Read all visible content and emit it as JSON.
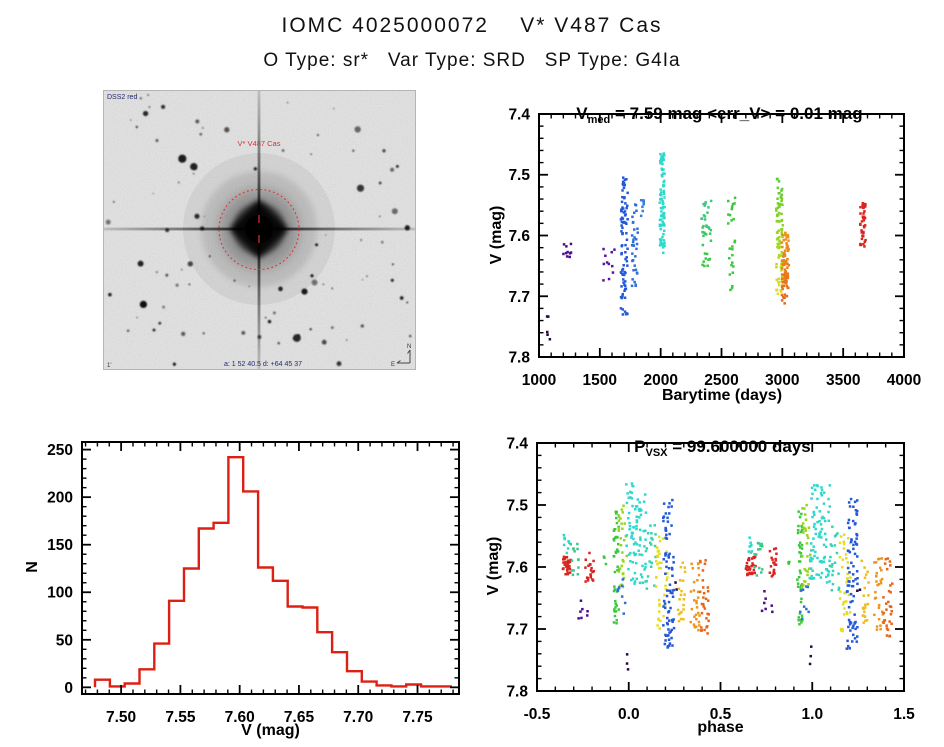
{
  "header": {
    "title": "IOMC 4025000072    V* V487 Cas",
    "subtitle": "O Type: sr*   Var Type: SRD   SP Type: G4Ia"
  },
  "finder": {
    "survey_label": "DSS2 red",
    "star_label": "V* V487 Cas",
    "coords_label": "a: 1 52 40.5   d: +64 45 37",
    "scale_label": "1'",
    "compass_n": "N",
    "compass_e": "E"
  },
  "chart_data": [
    {
      "name": "lightcurve",
      "type": "scatter",
      "title_parts": {
        "base": "V",
        "sub": "med",
        "rest": " = 7.59 mag <err_V> = 0.01 mag"
      },
      "xlabel": "Barytime (days)",
      "ylabel": "V (mag)",
      "xlim": [
        1000,
        4000
      ],
      "ylim": [
        7.8,
        7.4
      ],
      "xticks": [
        1000,
        1500,
        2000,
        2500,
        3000,
        3500,
        4000
      ],
      "xtick_labels": [
        "1000",
        "1500",
        "2000",
        "2500",
        "3000",
        "3500",
        "4000"
      ],
      "yticks": [
        7.4,
        7.5,
        7.6,
        7.7,
        7.8
      ],
      "ytick_labels": [
        "7.4",
        "7.5",
        "7.6",
        "7.7",
        "7.8"
      ],
      "xminor": 5,
      "yminor": 5,
      "clusters": [
        {
          "x": [
            1066,
            1092
          ],
          "y": [
            7.728,
            7.772
          ],
          "color": "#25093f",
          "n": 5
        },
        {
          "x": [
            1190,
            1285
          ],
          "y": [
            7.613,
            7.642
          ],
          "color": "#4a0d8c",
          "n": 10
        },
        {
          "x": [
            1520,
            1622
          ],
          "y": [
            7.617,
            7.678
          ],
          "color": "#5a12a2",
          "n": 11
        },
        {
          "x": [
            1672,
            1729
          ],
          "y": [
            7.496,
            7.733
          ],
          "color": "#2458d8",
          "n": 85
        },
        {
          "x": [
            1762,
            1812
          ],
          "y": [
            7.543,
            7.683
          ],
          "color": "#2e6fd8",
          "n": 34
        },
        {
          "x": [
            1836,
            1868
          ],
          "y": [
            7.538,
            7.568
          ],
          "color": "#3a7de0",
          "n": 9
        },
        {
          "x": [
            1992,
            2032
          ],
          "y": [
            7.465,
            7.63
          ],
          "color": "#2ed8cc",
          "n": 90
        },
        {
          "x": [
            2335,
            2415
          ],
          "y": [
            7.543,
            7.655
          ],
          "color": "#3cc88a",
          "color2": "#3cc83c",
          "n": 36
        },
        {
          "x": [
            2555,
            2612
          ],
          "y": [
            7.527,
            7.692
          ],
          "color": "#3cc83c",
          "n": 26
        },
        {
          "x": [
            2950,
            3004
          ],
          "y": [
            7.504,
            7.7
          ],
          "color": "#54cc30",
          "color2": "#e6dc20",
          "n": 85
        },
        {
          "x": [
            2996,
            3054
          ],
          "y": [
            7.594,
            7.712
          ],
          "color": "#f0941c",
          "color2": "#e4661a",
          "n": 85
        },
        {
          "x": [
            3638,
            3686
          ],
          "y": [
            7.546,
            7.623
          ],
          "color": "#da2420",
          "n": 40
        }
      ]
    },
    {
      "name": "histogram",
      "type": "bar",
      "xlabel": "V (mag)",
      "ylabel": "N",
      "color": "#dd2014",
      "xlim": [
        7.467,
        7.785
      ],
      "ylim": [
        0,
        250
      ],
      "bin_start": 7.478,
      "bin_width": 0.0125,
      "counts": [
        8,
        1,
        4,
        19,
        46,
        91,
        125,
        167,
        173,
        242,
        206,
        126,
        112,
        85,
        84,
        58,
        37,
        17,
        6,
        2,
        1,
        3,
        1,
        1
      ],
      "xticks": [
        7.5,
        7.55,
        7.6,
        7.65,
        7.7,
        7.75
      ],
      "xtick_labels": [
        "7.50",
        "7.55",
        "7.60",
        "7.65",
        "7.70",
        "7.75"
      ],
      "yticks": [
        0,
        50,
        100,
        150,
        200,
        250
      ],
      "ytick_labels": [
        "0",
        "50",
        "100",
        "150",
        "200",
        "250"
      ],
      "xminor": 5,
      "yminor": 5
    },
    {
      "name": "phase_curve",
      "type": "scatter",
      "title_parts": {
        "base": "P",
        "sub": "VSX",
        "rest": " = 99.600000 days"
      },
      "xlabel": "phase",
      "ylabel": "V (mag)",
      "xlim": [
        -0.5,
        1.5
      ],
      "ylim": [
        7.8,
        7.4
      ],
      "repeat": 1.0,
      "xticks": [
        -0.5,
        0.0,
        0.5,
        1.0,
        1.5
      ],
      "xtick_labels": [
        "-0.5",
        "0.0",
        "0.5",
        "1.0",
        "1.5"
      ],
      "yticks": [
        7.4,
        7.5,
        7.6,
        7.7,
        7.8
      ],
      "ytick_labels": [
        "7.4",
        "7.5",
        "7.6",
        "7.7",
        "7.8"
      ],
      "xminor": 5,
      "yminor": 5,
      "clusters": [
        {
          "x": [
            -0.362,
            -0.308
          ],
          "y": [
            7.582,
            7.614
          ],
          "color": "#da2420",
          "n": 34
        },
        {
          "x": [
            -0.237,
            -0.19
          ],
          "y": [
            7.57,
            7.624
          ],
          "color": "#da2420",
          "n": 20
        },
        {
          "x": [
            -0.357,
            -0.322
          ],
          "y": [
            7.548,
            7.58
          ],
          "color": "#2ed8cc",
          "n": 8
        },
        {
          "x": [
            -0.318,
            -0.268
          ],
          "y": [
            7.556,
            7.614
          ],
          "color": "#3cc88a",
          "n": 14
        },
        {
          "x": [
            -0.278,
            -0.252
          ],
          "y": [
            7.62,
            7.684
          ],
          "color": "#4a0d8c",
          "n": 5
        },
        {
          "x": [
            -0.228,
            -0.213
          ],
          "y": [
            7.662,
            7.68
          ],
          "color": "#4a0d8c",
          "n": 2
        },
        {
          "x": [
            -0.143,
            -0.123
          ],
          "y": [
            7.583,
            7.602
          ],
          "color": "#3cc83c",
          "n": 3
        },
        {
          "x": [
            -0.082,
            -0.052
          ],
          "y": [
            7.51,
            7.698
          ],
          "color": "#3cc83c",
          "n": 42
        },
        {
          "x": [
            -0.057,
            -0.01
          ],
          "y": [
            7.5,
            7.634
          ],
          "color": "#9ad41e",
          "n": 30
        },
        {
          "x": [
            -0.068,
            -0.018
          ],
          "y": [
            7.614,
            7.69
          ],
          "color": "#2e6fd8",
          "n": 9
        },
        {
          "x": [
            -0.012,
            0.006
          ],
          "y": [
            7.728,
            7.77
          ],
          "color": "#25093f",
          "n": 3
        },
        {
          "x": [
            -0.014,
            0.096
          ],
          "y": [
            7.465,
            7.627
          ],
          "color": "#2ed8cc",
          "n": 85
        },
        {
          "x": [
            0.096,
            0.148
          ],
          "y": [
            7.528,
            7.64
          ],
          "color": "#38d2b2",
          "n": 20
        },
        {
          "x": [
            0.148,
            0.212
          ],
          "y": [
            7.545,
            7.706
          ],
          "color": "#e6dc20",
          "n": 38
        },
        {
          "x": [
            0.188,
            0.247
          ],
          "y": [
            7.49,
            7.732
          ],
          "color": "#2458d8",
          "n": 80
        },
        {
          "x": [
            0.245,
            0.262
          ],
          "y": [
            7.622,
            7.642
          ],
          "color": "#25093f",
          "n": 2
        },
        {
          "x": [
            0.268,
            0.307
          ],
          "y": [
            7.59,
            7.69
          ],
          "color": "#edbe1e",
          "n": 22
        },
        {
          "x": [
            0.338,
            0.387
          ],
          "y": [
            7.586,
            7.702
          ],
          "color": "#f0941c",
          "n": 30
        },
        {
          "x": [
            0.388,
            0.437
          ],
          "y": [
            7.586,
            7.714
          ],
          "color": "#e4661a",
          "n": 30
        }
      ]
    }
  ]
}
